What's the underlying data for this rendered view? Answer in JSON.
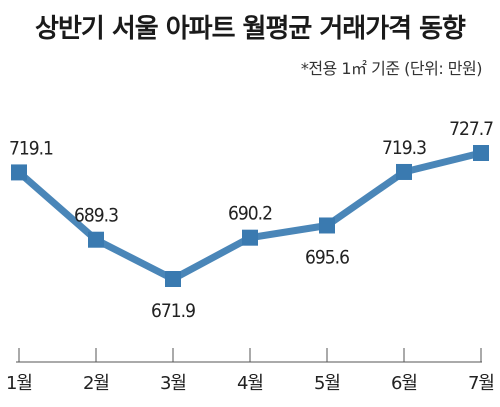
{
  "chart_data": {
    "type": "line",
    "title": "상반기 서울 아파트 월평균 거래가격 동향",
    "subtitle": "*전용 1㎡ 기준  (단위: 만원)",
    "categories": [
      "1월",
      "2월",
      "3월",
      "4월",
      "5월",
      "6월",
      "7월"
    ],
    "series": [
      {
        "values": [
          719.1,
          689.3,
          671.9,
          690.2,
          695.6,
          719.3,
          727.7
        ],
        "labels": [
          "719.1",
          "689.3",
          "671.9",
          "690.2",
          "695.6",
          "719.3",
          "727.7"
        ]
      }
    ],
    "grid": false,
    "colors": {
      "line": "#4a86b8",
      "marker": "#3a7ab0",
      "axis": "#555555",
      "text": "#222222"
    }
  }
}
